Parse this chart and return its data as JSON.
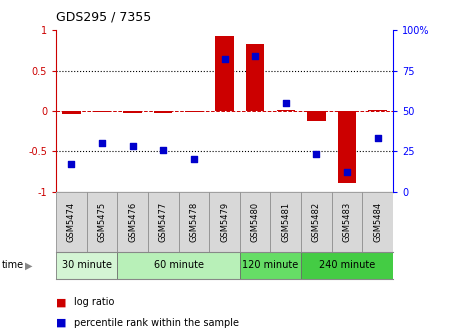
{
  "title": "GDS295 / 7355",
  "samples": [
    "GSM5474",
    "GSM5475",
    "GSM5476",
    "GSM5477",
    "GSM5478",
    "GSM5479",
    "GSM5480",
    "GSM5481",
    "GSM5482",
    "GSM5483",
    "GSM5484"
  ],
  "log_ratio": [
    -0.04,
    -0.02,
    -0.03,
    -0.03,
    -0.02,
    0.93,
    0.83,
    0.01,
    -0.12,
    -0.9,
    0.01
  ],
  "percentile_rank": [
    17,
    30,
    28,
    26,
    20,
    82,
    84,
    55,
    23,
    12,
    33
  ],
  "groups": [
    {
      "label": "30 minute",
      "start": 0,
      "end": 2,
      "color": "#d4f5d4"
    },
    {
      "label": "60 minute",
      "start": 2,
      "end": 6,
      "color": "#b8f0b8"
    },
    {
      "label": "120 minute",
      "start": 6,
      "end": 8,
      "color": "#66dd66"
    },
    {
      "label": "240 minute",
      "start": 8,
      "end": 11,
      "color": "#44cc44"
    }
  ],
  "bar_color": "#cc0000",
  "dot_color": "#0000cc",
  "background_color": "#ffffff",
  "time_label": "time"
}
